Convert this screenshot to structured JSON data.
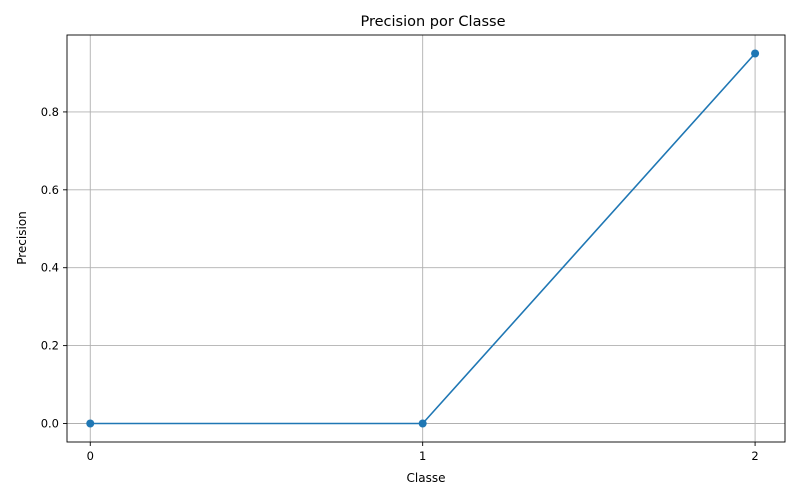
{
  "chart_data": {
    "type": "line",
    "title": "Precision por Classe",
    "xlabel": "Classe",
    "ylabel": "Precision",
    "x": [
      0,
      1,
      2
    ],
    "series": [
      {
        "values": [
          0.0,
          0.0,
          0.95
        ],
        "color": "#1f77b4",
        "marker": "circle"
      }
    ],
    "xlim": [
      -0.07,
      2.09
    ],
    "ylim": [
      -0.0475,
      0.9975
    ],
    "xticks": [
      0,
      1,
      2
    ],
    "xtick_labels": [
      "0",
      "1",
      "2"
    ],
    "yticks": [
      0.0,
      0.2,
      0.4,
      0.6,
      0.8
    ],
    "ytick_labels": [
      "0.0",
      "0.2",
      "0.4",
      "0.6",
      "0.8"
    ],
    "grid": true,
    "legend": "none"
  }
}
